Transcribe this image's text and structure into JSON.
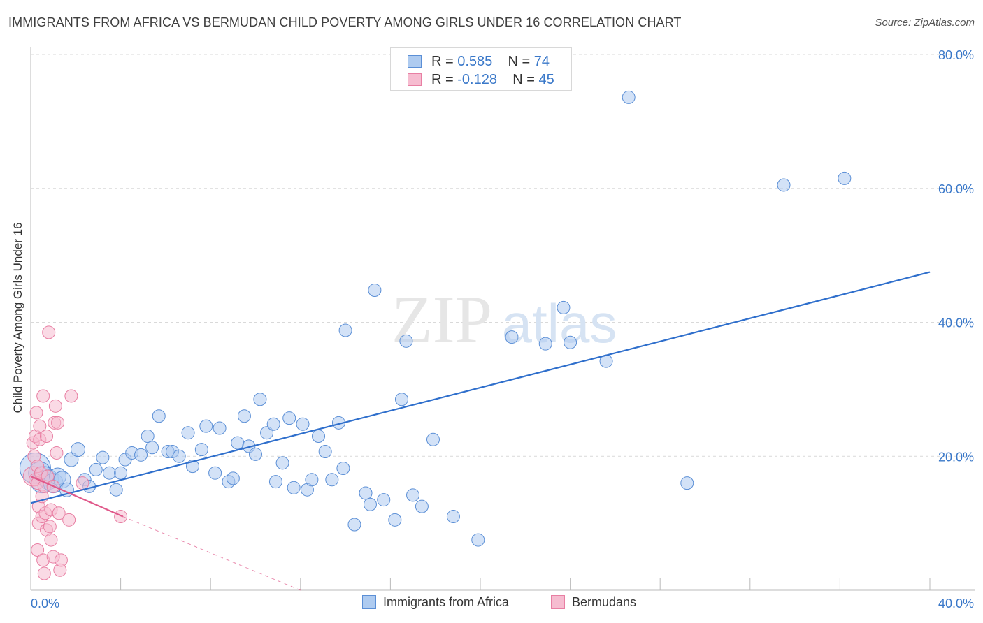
{
  "title": "IMMIGRANTS FROM AFRICA VS BERMUDAN CHILD POVERTY AMONG GIRLS UNDER 16 CORRELATION CHART",
  "source": "Source: ZipAtlas.com",
  "watermark": {
    "zip": "ZIP",
    "atlas": "atlas"
  },
  "legend": {
    "rows": [
      {
        "r_label": "R =",
        "r_value": "0.585",
        "n_label": "N =",
        "n_value": "74"
      },
      {
        "r_label": "R =",
        "r_value": "-0.128",
        "n_label": "N =",
        "n_value": "45"
      }
    ]
  },
  "bottom_legend": {
    "series1": "Immigrants from Africa",
    "series2": "Bermudans"
  },
  "colors": {
    "blue_fill": "#aecbf0",
    "blue_stroke": "#5b8fd6",
    "blue_line": "#2f6fcc",
    "pink_fill": "#f6bcd0",
    "pink_stroke": "#e87fa3",
    "pink_line": "#e0588a",
    "axis_text": "#3a78c9",
    "grid": "#d9d9d9"
  },
  "chart_data": {
    "type": "scatter",
    "title": "IMMIGRANTS FROM AFRICA VS BERMUDAN CHILD POVERTY AMONG GIRLS UNDER 16 CORRELATION CHART",
    "xlabel": "",
    "ylabel": "Child Poverty Among Girls Under 16",
    "xlim": [
      0,
      40
    ],
    "ylim": [
      0,
      80
    ],
    "x_tick_labels": [
      "0.0%",
      "40.0%"
    ],
    "y_ticks": [
      20,
      40,
      60,
      80
    ],
    "y_tick_labels": [
      "20.0%",
      "40.0%",
      "60.0%",
      "80.0%"
    ],
    "grid": true,
    "series": [
      {
        "name": "Immigrants from Africa",
        "r": 0.585,
        "n": 74,
        "trend": {
          "x0": 0,
          "y0": 13.0,
          "x1": 40,
          "y1": 47.5
        },
        "points": [
          [
            0.2,
            18.2,
            22
          ],
          [
            0.4,
            17.5,
            16
          ],
          [
            0.5,
            16.2,
            16
          ],
          [
            0.6,
            17.0,
            14
          ],
          [
            0.8,
            16.5,
            14
          ],
          [
            1.0,
            16.0,
            14
          ],
          [
            1.2,
            17.0,
            12
          ],
          [
            1.4,
            16.5,
            12
          ],
          [
            1.6,
            15.0,
            10
          ],
          [
            1.8,
            19.5,
            10
          ],
          [
            2.1,
            21.0,
            10
          ],
          [
            2.4,
            16.5,
            9
          ],
          [
            2.6,
            15.5,
            9
          ],
          [
            2.9,
            18.0,
            9
          ],
          [
            3.2,
            19.8,
            9
          ],
          [
            3.5,
            17.5,
            9
          ],
          [
            3.8,
            15.0,
            9
          ],
          [
            4.0,
            17.5,
            9
          ],
          [
            4.2,
            19.5,
            9
          ],
          [
            4.5,
            20.5,
            9
          ],
          [
            4.9,
            20.2,
            9
          ],
          [
            5.2,
            23.0,
            9
          ],
          [
            5.4,
            21.3,
            9
          ],
          [
            5.7,
            26.0,
            9
          ],
          [
            6.1,
            20.7,
            9
          ],
          [
            6.3,
            20.7,
            9
          ],
          [
            6.6,
            20.0,
            9
          ],
          [
            7.0,
            23.5,
            9
          ],
          [
            7.2,
            18.5,
            9
          ],
          [
            7.6,
            21.0,
            9
          ],
          [
            7.8,
            24.5,
            9
          ],
          [
            8.2,
            17.5,
            9
          ],
          [
            8.4,
            24.2,
            9
          ],
          [
            8.8,
            16.2,
            9
          ],
          [
            9.0,
            16.7,
            9
          ],
          [
            9.2,
            22.0,
            9
          ],
          [
            9.5,
            26.0,
            9
          ],
          [
            9.7,
            21.5,
            9
          ],
          [
            10.0,
            20.3,
            9
          ],
          [
            10.2,
            28.5,
            9
          ],
          [
            10.5,
            23.5,
            9
          ],
          [
            10.8,
            24.8,
            9
          ],
          [
            10.9,
            16.2,
            9
          ],
          [
            11.2,
            19.0,
            9
          ],
          [
            11.5,
            25.7,
            9
          ],
          [
            11.7,
            15.3,
            9
          ],
          [
            12.1,
            24.8,
            9
          ],
          [
            12.3,
            15.0,
            9
          ],
          [
            12.5,
            16.5,
            9
          ],
          [
            12.8,
            23.0,
            9
          ],
          [
            13.1,
            20.7,
            9
          ],
          [
            13.4,
            16.5,
            9
          ],
          [
            13.7,
            25.0,
            9
          ],
          [
            13.9,
            18.2,
            9
          ],
          [
            14.0,
            38.8,
            9
          ],
          [
            14.4,
            9.8,
            9
          ],
          [
            14.9,
            14.5,
            9
          ],
          [
            15.1,
            12.8,
            9
          ],
          [
            15.3,
            44.8,
            9
          ],
          [
            15.7,
            13.5,
            9
          ],
          [
            16.2,
            10.5,
            9
          ],
          [
            16.5,
            28.5,
            9
          ],
          [
            16.7,
            37.2,
            9
          ],
          [
            17.0,
            14.2,
            9
          ],
          [
            17.4,
            12.5,
            9
          ],
          [
            17.9,
            22.5,
            9
          ],
          [
            18.8,
            11.0,
            9
          ],
          [
            19.9,
            7.5,
            9
          ],
          [
            21.4,
            37.8,
            9
          ],
          [
            22.9,
            36.8,
            9
          ],
          [
            23.7,
            42.2,
            9
          ],
          [
            24.0,
            37.0,
            9
          ],
          [
            25.6,
            34.2,
            9
          ],
          [
            26.6,
            73.6,
            9
          ],
          [
            29.2,
            16.0,
            9
          ],
          [
            33.5,
            60.5,
            9
          ],
          [
            36.2,
            61.5,
            9
          ]
        ]
      },
      {
        "name": "Bermudans",
        "r": -0.128,
        "n": 45,
        "trend": {
          "x0": 0,
          "y0": 17.0,
          "x1": 4.1,
          "y1": 11.0
        },
        "trend_extension": {
          "x0": 4.1,
          "y0": 11.0,
          "x1": 12.0,
          "y1": 0.0
        },
        "points": [
          [
            0.1,
            17.0,
            14
          ],
          [
            0.1,
            22.0,
            9
          ],
          [
            0.15,
            20.0,
            9
          ],
          [
            0.2,
            23.0,
            9
          ],
          [
            0.2,
            16.5,
            9
          ],
          [
            0.25,
            26.5,
            9
          ],
          [
            0.3,
            18.5,
            9
          ],
          [
            0.3,
            16.0,
            9
          ],
          [
            0.3,
            6.0,
            9
          ],
          [
            0.35,
            10.0,
            9
          ],
          [
            0.35,
            12.5,
            9
          ],
          [
            0.4,
            24.5,
            9
          ],
          [
            0.4,
            22.5,
            9
          ],
          [
            0.45,
            17.5,
            9
          ],
          [
            0.5,
            14.0,
            9
          ],
          [
            0.5,
            11.0,
            9
          ],
          [
            0.55,
            29.0,
            9
          ],
          [
            0.55,
            4.5,
            9
          ],
          [
            0.6,
            15.5,
            9
          ],
          [
            0.6,
            2.5,
            9
          ],
          [
            0.65,
            11.5,
            9
          ],
          [
            0.7,
            23.0,
            9
          ],
          [
            0.7,
            9.0,
            9
          ],
          [
            0.75,
            17.0,
            9
          ],
          [
            0.8,
            38.5,
            9
          ],
          [
            0.85,
            9.5,
            9
          ],
          [
            0.9,
            7.5,
            9
          ],
          [
            0.9,
            12.0,
            9
          ],
          [
            1.0,
            5.0,
            9
          ],
          [
            1.0,
            15.5,
            9
          ],
          [
            1.05,
            25.0,
            9
          ],
          [
            1.1,
            27.5,
            9
          ],
          [
            1.15,
            20.5,
            9
          ],
          [
            1.2,
            25.0,
            9
          ],
          [
            1.25,
            11.5,
            9
          ],
          [
            1.3,
            3.0,
            9
          ],
          [
            1.35,
            4.5,
            9
          ],
          [
            1.7,
            10.5,
            9
          ],
          [
            1.8,
            29.0,
            9
          ],
          [
            2.3,
            16.0,
            9
          ],
          [
            4.0,
            11.0,
            9
          ]
        ]
      }
    ]
  }
}
